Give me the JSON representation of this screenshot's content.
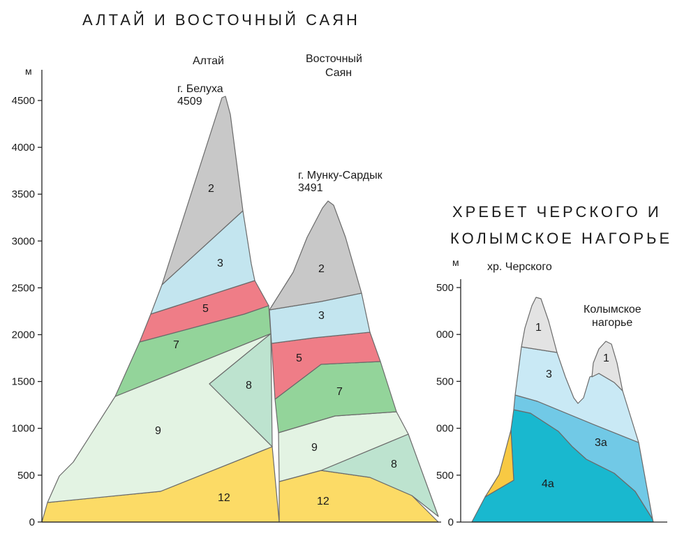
{
  "left_panel": {
    "title": "АЛТАЙ И ВОСТОЧНЫЙ САЯН",
    "unit": "м",
    "ticks": [
      "4500",
      "4000",
      "3500",
      "3000",
      "2500",
      "2000",
      "1500",
      "1000",
      "500",
      "0"
    ],
    "labels": {
      "altai": "Алтай",
      "sayan_line1": "Восточный",
      "sayan_line2": "Саян",
      "belukha_name": "г. Белуха",
      "belukha_height": "4509",
      "munku_name": "г. Мунку-Сардык",
      "munku_height": "3491"
    },
    "zones": {
      "altai_2": "2",
      "altai_3": "3",
      "altai_5": "5",
      "altai_7": "7",
      "altai_8": "8",
      "altai_9": "9",
      "altai_12": "12",
      "sayan_2": "2",
      "sayan_3": "3",
      "sayan_5": "5",
      "sayan_7": "7",
      "sayan_9": "9",
      "sayan_8": "8",
      "sayan_12": "12"
    }
  },
  "right_panel": {
    "title_line1": "ХРЕБЕТ ЧЕРСКОГО И",
    "title_line2": "КОЛЫМСКОЕ НАГОРЬЕ",
    "unit": "м",
    "ticks": [
      "500",
      "000",
      "500",
      "000",
      "500",
      "0"
    ],
    "labels": {
      "chersky": "хр. Черского",
      "kolyma_line1": "Колымское",
      "kolyma_line2": "нагорье"
    },
    "zones": {
      "peak1": "1",
      "peak2": "1",
      "z3": "3",
      "z3a": "3а",
      "z4a": "4а"
    }
  },
  "colors": {
    "nival_gray": "#c8c8c8",
    "light_blue": "#c3e5ef",
    "pink_red": "#ef7d87",
    "green": "#93d49a",
    "pale_green": "#e3f3e3",
    "mint": "#bde3cf",
    "yellow": "#fcdb66",
    "light_gray": "#e3e3e3",
    "sky_blue": "#c9e9f5",
    "blue": "#71c9e6",
    "teal": "#19b8cf",
    "orange_yellow": "#f8c943"
  }
}
